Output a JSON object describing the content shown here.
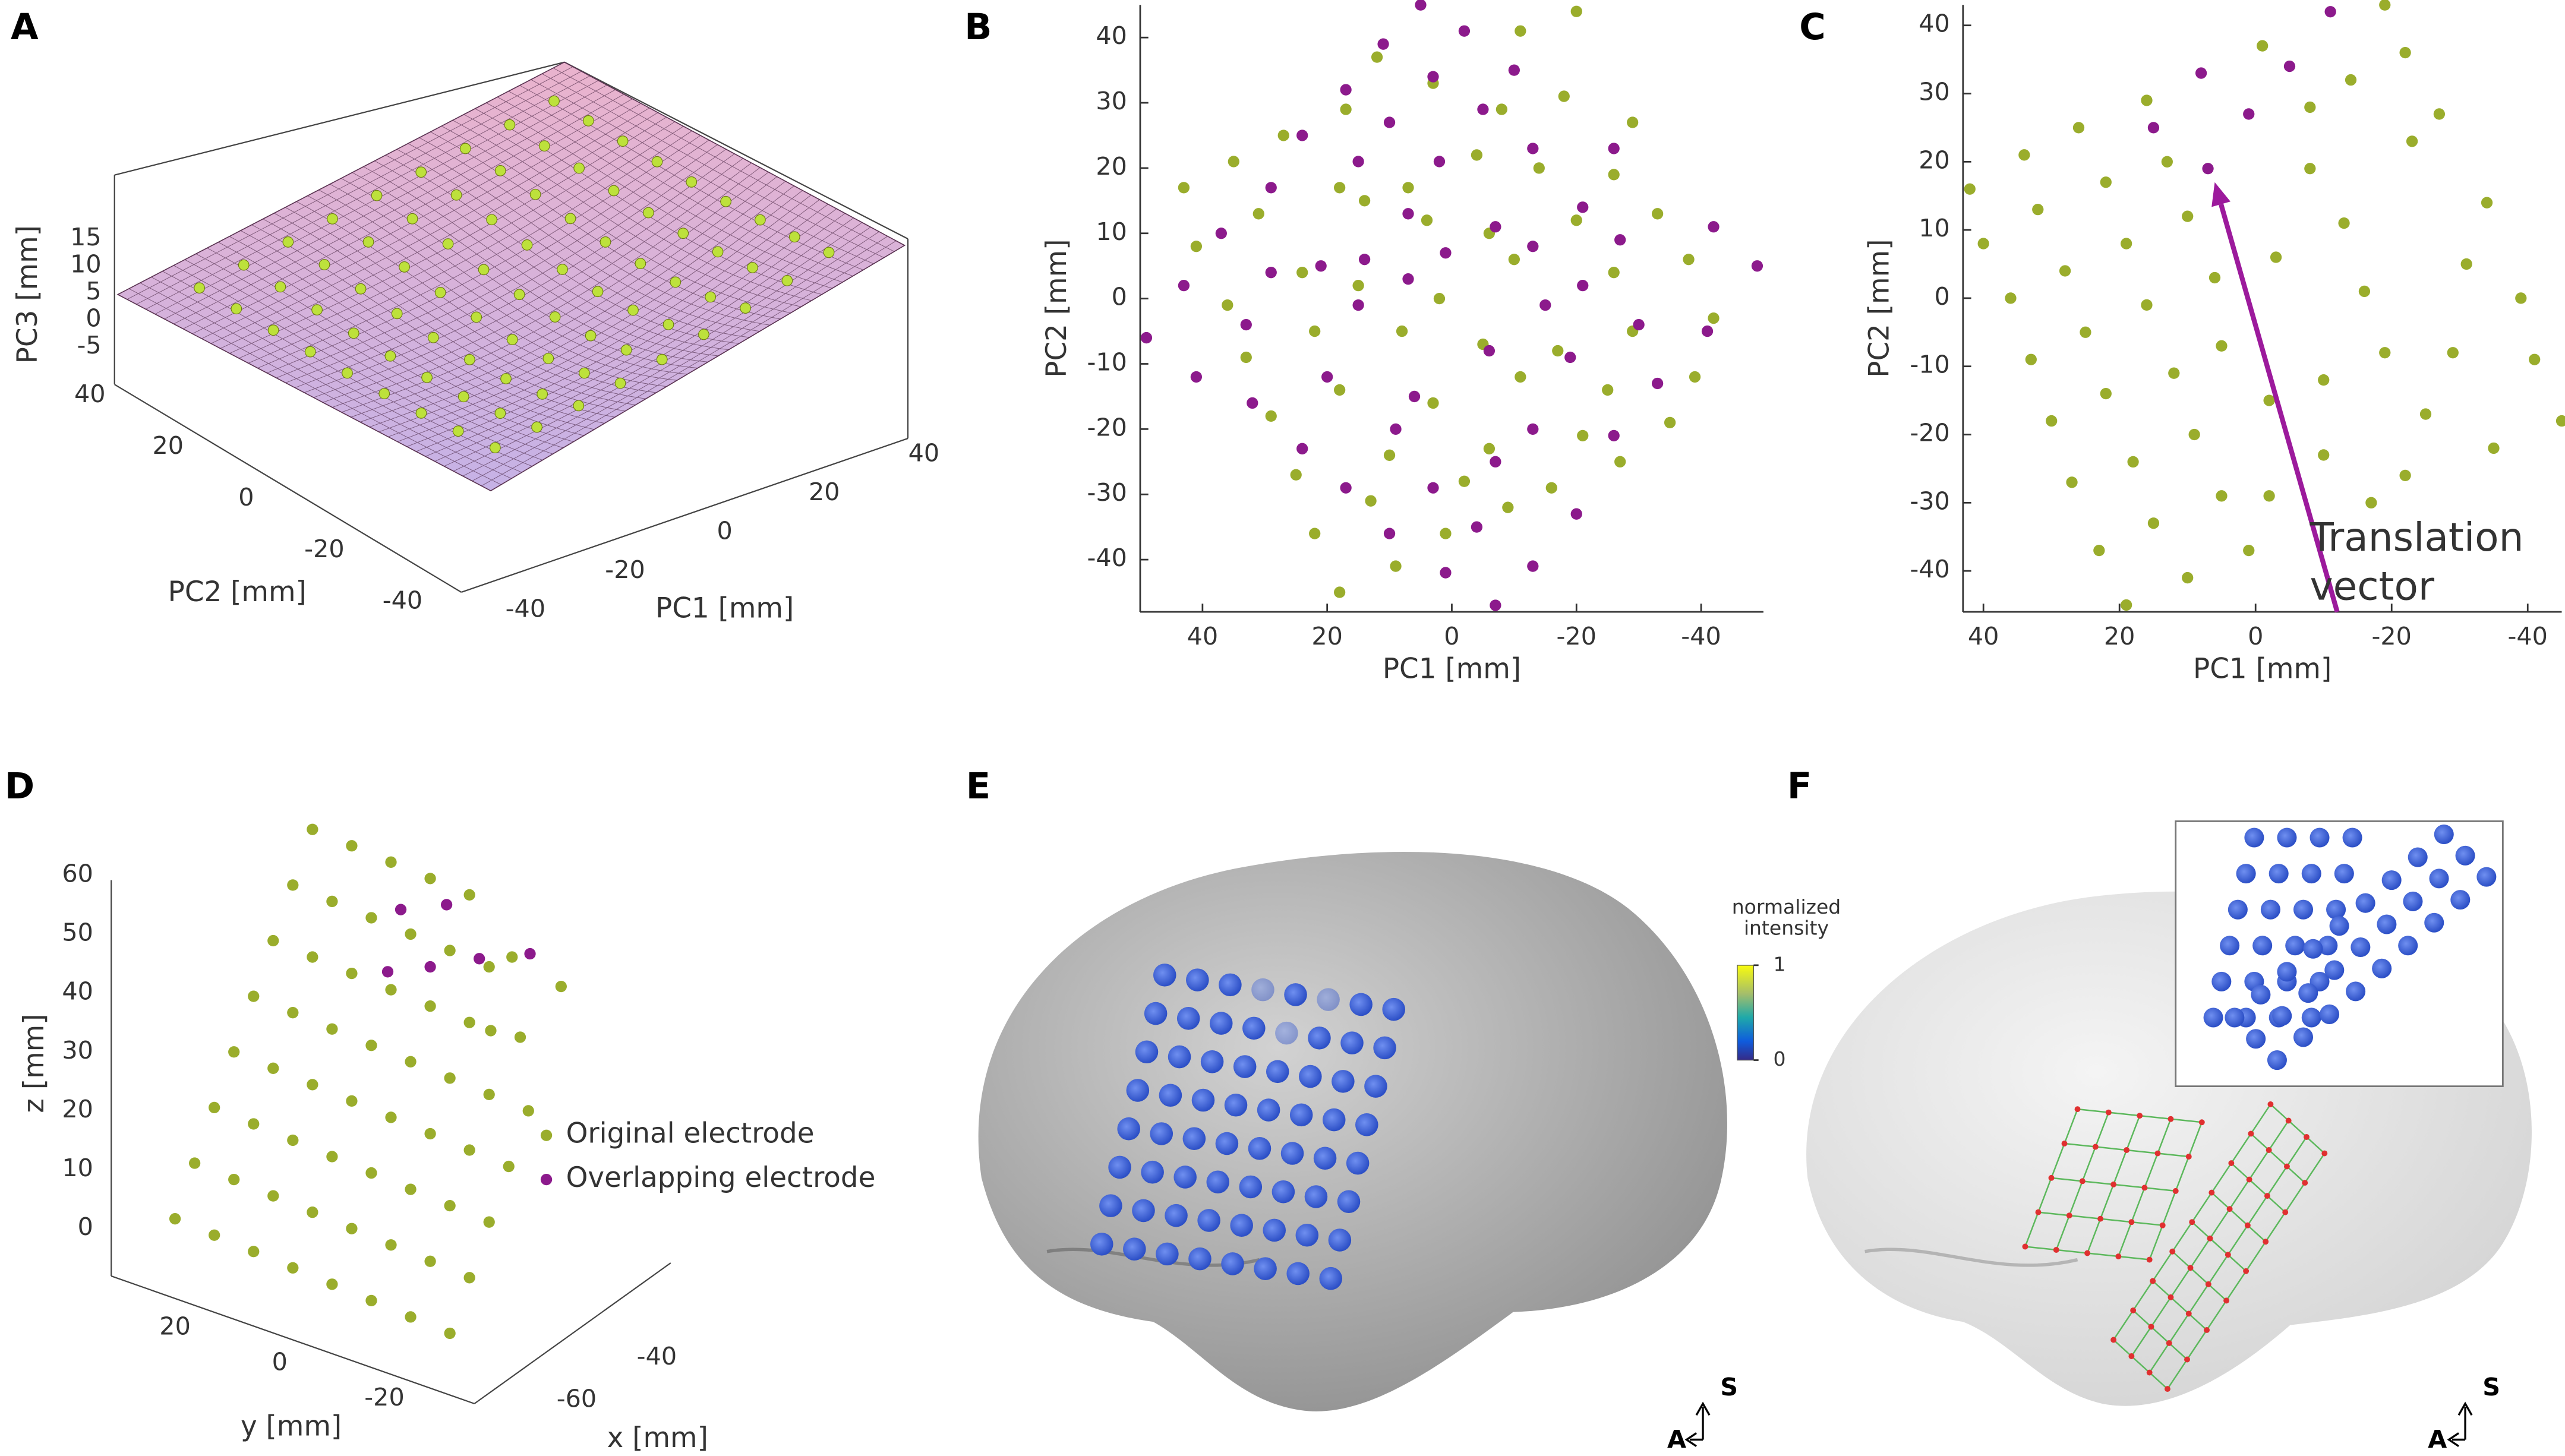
{
  "chart_data": [
    {
      "type": "surface3d",
      "panel_label": "A",
      "xlabel": "PC1 [mm]",
      "ylabel": "PC2 [mm]",
      "zlabel": "PC3 [mm]",
      "xlim": [
        -45,
        45
      ],
      "ylim": [
        -45,
        45
      ],
      "zlim": [
        -8,
        18
      ],
      "xticks": [
        40,
        20,
        0,
        -20,
        -40
      ],
      "yticks": [
        40,
        20,
        0,
        -20,
        -40
      ],
      "zticks": [
        15,
        10,
        5,
        0,
        -5
      ],
      "surface_color": "#dcaed6",
      "point_color": "#bde13b"
    },
    {
      "type": "scatter",
      "panel_label": "B",
      "xlabel": "PC1 [mm]",
      "ylabel": "PC2 [mm]",
      "xlim": [
        50,
        -50
      ],
      "ylim": [
        -48,
        45
      ],
      "xticks": [
        40,
        20,
        0,
        -20,
        -40
      ],
      "yticks": [
        40,
        30,
        20,
        10,
        0,
        -10,
        -20,
        -30,
        -40
      ],
      "series": [
        {
          "color": "#9aad2c",
          "x": [
            -20,
            -11,
            3,
            12,
            -29,
            -18,
            -8,
            17,
            27,
            35,
            -26,
            -14,
            -4,
            7,
            18,
            43,
            -33,
            -20,
            -6,
            4,
            14,
            31,
            41,
            -38,
            -26,
            -10,
            2,
            15,
            24,
            36,
            -42,
            -29,
            -17,
            -5,
            8,
            22,
            33,
            -39,
            -25,
            -11,
            3,
            18,
            29,
            -35,
            -21,
            -6,
            10,
            25,
            -27,
            -16,
            -2,
            13,
            22,
            -9,
            1,
            9,
            18
          ],
          "values": [
            44,
            41,
            33,
            37,
            27,
            31,
            29,
            29,
            25,
            21,
            19,
            20,
            22,
            17,
            17,
            17,
            13,
            12,
            10,
            12,
            15,
            13,
            8,
            6,
            4,
            6,
            0,
            2,
            4,
            -1,
            -3,
            -5,
            -8,
            -7,
            -5,
            -5,
            -9,
            -12,
            -14,
            -12,
            -16,
            -14,
            -18,
            -19,
            -21,
            -23,
            -24,
            -27,
            -25,
            -29,
            -28,
            -31,
            -36,
            -32,
            -36,
            -41,
            -45
          ]
        },
        {
          "color": "#8c1a8c",
          "x": [
            5,
            -2,
            11,
            -10,
            3,
            17,
            10,
            -5,
            24,
            -13,
            15,
            2,
            -26,
            29,
            -21,
            37,
            -7,
            7,
            -27,
            -42,
            21,
            1,
            -13,
            14,
            29,
            43,
            7,
            -21,
            -49,
            -30,
            49,
            -15,
            -6,
            33,
            15,
            41,
            -41,
            20,
            6,
            -19,
            -33,
            32,
            9,
            -13,
            24,
            3,
            -7,
            -26,
            17,
            -20,
            10,
            -4,
            -13,
            1,
            -7
          ],
          "values": [
            45,
            41,
            39,
            35,
            34,
            32,
            27,
            29,
            25,
            23,
            21,
            21,
            23,
            17,
            14,
            10,
            11,
            13,
            9,
            11,
            5,
            7,
            8,
            6,
            4,
            2,
            3,
            2,
            5,
            -4,
            -6,
            -1,
            -8,
            -4,
            -1,
            -12,
            -5,
            -12,
            -15,
            -9,
            -13,
            -16,
            -20,
            -20,
            -23,
            -29,
            -25,
            -21,
            -29,
            -33,
            -36,
            -35,
            -41,
            -42,
            -47
          ]
        }
      ]
    },
    {
      "type": "scatter",
      "panel_label": "C",
      "xlabel": "PC1 [mm]",
      "ylabel": "PC2 [mm]",
      "xlim": [
        43,
        -45
      ],
      "ylim": [
        -46,
        43
      ],
      "xticks": [
        40,
        20,
        0,
        -20,
        -40
      ],
      "yticks": [
        40,
        30,
        20,
        10,
        0,
        -10,
        -20,
        -30,
        -40
      ],
      "series": [
        {
          "color": "#9aad2c",
          "x": [
            42,
            40,
            36,
            33,
            30,
            27,
            23,
            19,
            34,
            32,
            28,
            25,
            22,
            18,
            15,
            10,
            26,
            22,
            19,
            16,
            12,
            9,
            5,
            1,
            16,
            13,
            10,
            6,
            5,
            -2,
            -2,
            -1,
            -8,
            -8,
            -3,
            -13,
            -16,
            -19,
            -10,
            -10,
            -17,
            -22,
            -25,
            -29,
            -31,
            -34,
            -39,
            -41,
            -35,
            -45,
            -23,
            -27,
            -22,
            -19,
            -14
          ],
          "values": [
            16,
            8,
            0,
            -9,
            -18,
            -27,
            -37,
            -45,
            21,
            13,
            4,
            -5,
            -14,
            -24,
            -33,
            -41,
            25,
            17,
            8,
            -1,
            -11,
            -20,
            -29,
            -37,
            29,
            20,
            12,
            3,
            -7,
            -15,
            -29,
            37,
            28,
            19,
            6,
            11,
            1,
            -8,
            -12,
            -23,
            -30,
            -26,
            -17,
            -8,
            5,
            14,
            0,
            -9,
            -22,
            -18,
            23,
            27,
            36,
            43,
            32
          ]
        },
        {
          "color": "#8c1a8c",
          "x": [
            -11,
            8,
            -5,
            15,
            1,
            7
          ],
          "values": [
            42,
            33,
            34,
            25,
            27,
            19
          ]
        }
      ],
      "arrow": {
        "x": [
          -12,
          6
        ],
        "y": [
          -46,
          17
        ],
        "color": "#9c1a9c"
      },
      "annotation": {
        "lines": [
          "Translation",
          "vector"
        ],
        "color": "#9c1a9c"
      }
    },
    {
      "type": "scatter3d",
      "panel_label": "D",
      "xlabel": "x [mm]",
      "ylabel": "y [mm]",
      "zlabel": "z [mm]",
      "xlim": [
        -70,
        -30
      ],
      "ylim": [
        -30,
        30
      ],
      "zlim": [
        -5,
        65
      ],
      "xticks": [
        -40,
        -60
      ],
      "yticks": [
        20,
        0,
        -20
      ],
      "zticks": [
        60,
        50,
        40,
        30,
        20,
        10,
        0
      ],
      "series": [
        {
          "name": "Original electrode",
          "color": "#9aad2c"
        },
        {
          "name": "Overlapping electrode",
          "color": "#8c1a8c"
        }
      ]
    }
  ],
  "images": [
    {
      "panel_label": "E",
      "colorbar": {
        "title": [
          "normalized",
          "intensity"
        ],
        "lim": [
          0,
          1
        ],
        "ticks": [
          1,
          0
        ]
      },
      "orientation": {
        "up": "S",
        "left": "A"
      }
    },
    {
      "panel_label": "F",
      "orientation": {
        "up": "S",
        "left": "A"
      }
    }
  ]
}
